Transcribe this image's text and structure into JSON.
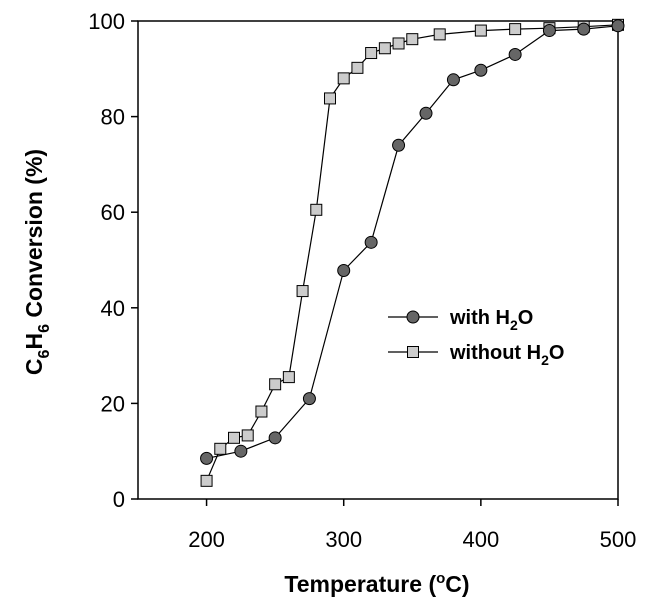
{
  "chart_data": {
    "type": "line",
    "xlabel": "Temperature",
    "xlabel_unit_prefix": "(",
    "xlabel_unit_sup": "o",
    "xlabel_unit_suffix": "C)",
    "ylabel_c": "C",
    "ylabel_sub6a": "6",
    "ylabel_h": "H",
    "ylabel_sub6b": "6",
    "ylabel_rest": " Conversion (%)",
    "xlim": [
      150,
      500
    ],
    "ylim": [
      0,
      100
    ],
    "xticks": [
      200,
      300,
      400,
      500
    ],
    "yticks": [
      0,
      20,
      40,
      60,
      80,
      100
    ],
    "grid": false,
    "legend_position": "center-right",
    "series": [
      {
        "name_prefix": "with H",
        "name_sub": "2",
        "name_suffix": "O",
        "marker": "circle",
        "color": "#666666",
        "x": [
          200,
          225,
          250,
          275,
          300,
          320,
          340,
          360,
          380,
          400,
          425,
          450,
          475,
          500
        ],
        "y": [
          8.5,
          10,
          12.8,
          21,
          47.8,
          53.7,
          74,
          80.7,
          87.7,
          89.7,
          93,
          98,
          98.3,
          99
        ]
      },
      {
        "name_prefix": "without H",
        "name_sub": "2",
        "name_suffix": "O",
        "marker": "square",
        "color": "#cccccc",
        "x": [
          200,
          210,
          220,
          230,
          240,
          250,
          260,
          270,
          280,
          290,
          300,
          310,
          320,
          330,
          340,
          350,
          370,
          400,
          425,
          450,
          475,
          500
        ],
        "y": [
          3.8,
          10.5,
          12.8,
          13.3,
          18.3,
          24,
          25.5,
          43.5,
          60.5,
          83.8,
          88,
          90.2,
          93.3,
          94.3,
          95.3,
          96.2,
          97.2,
          98,
          98.3,
          98.5,
          98.8,
          99.2
        ]
      }
    ]
  }
}
